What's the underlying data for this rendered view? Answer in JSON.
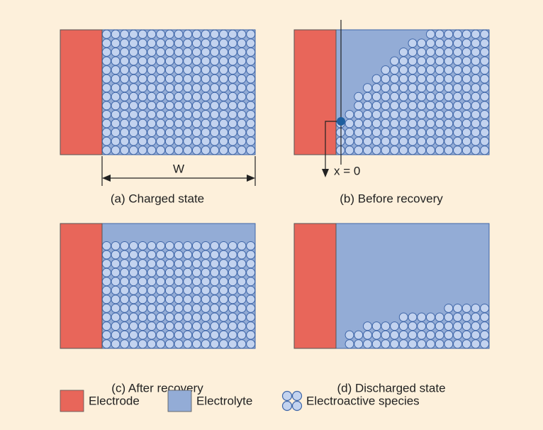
{
  "panels": [
    {
      "caption": "(a) Charged state"
    },
    {
      "caption": "(b) Before recovery"
    },
    {
      "caption": "(c) After recovery"
    },
    {
      "caption": "(d) Discharged state"
    }
  ],
  "width_label": "W",
  "origin_label": "x = 0",
  "legend": [
    "Electrode",
    "Electrolyte",
    "Electroactive species"
  ]
}
